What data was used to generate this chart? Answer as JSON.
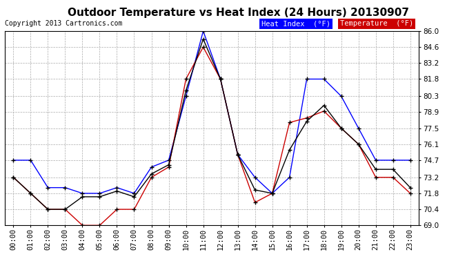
{
  "title": "Outdoor Temperature vs Heat Index (24 Hours) 20130907",
  "copyright": "Copyright 2013 Cartronics.com",
  "background_color": "#ffffff",
  "grid_color": "#aaaaaa",
  "ylim": [
    69.0,
    86.0
  ],
  "yticks": [
    69.0,
    70.4,
    71.8,
    73.2,
    74.7,
    76.1,
    77.5,
    78.9,
    80.3,
    81.8,
    83.2,
    84.6,
    86.0
  ],
  "hours": [
    "00:00",
    "01:00",
    "02:00",
    "03:00",
    "04:00",
    "05:00",
    "06:00",
    "07:00",
    "08:00",
    "09:00",
    "10:00",
    "11:00",
    "12:00",
    "13:00",
    "14:00",
    "15:00",
    "16:00",
    "17:00",
    "18:00",
    "19:00",
    "20:00",
    "21:00",
    "22:00",
    "23:00"
  ],
  "heat_index": [
    74.7,
    74.7,
    72.3,
    72.3,
    71.8,
    71.8,
    72.3,
    71.8,
    74.1,
    74.7,
    80.3,
    86.0,
    81.8,
    75.2,
    73.2,
    71.8,
    73.2,
    81.8,
    81.8,
    80.3,
    77.5,
    74.7,
    74.7,
    74.7
  ],
  "temperature": [
    73.2,
    71.8,
    70.4,
    70.4,
    69.0,
    69.0,
    70.4,
    70.4,
    73.2,
    74.1,
    81.8,
    84.6,
    81.8,
    75.2,
    71.0,
    71.8,
    78.0,
    78.4,
    79.0,
    77.5,
    76.1,
    73.2,
    73.2,
    71.8
  ],
  "black_line": [
    73.2,
    71.8,
    70.4,
    70.4,
    71.5,
    71.5,
    72.0,
    71.5,
    73.5,
    74.3,
    80.8,
    85.3,
    81.8,
    75.2,
    72.1,
    71.8,
    75.6,
    78.1,
    79.5,
    77.5,
    76.1,
    73.9,
    73.9,
    72.3
  ],
  "heat_index_color": "#0000ff",
  "temperature_color": "#cc0000",
  "black_line_color": "#000000",
  "title_fontsize": 11,
  "tick_fontsize": 7.5,
  "copyright_fontsize": 7
}
